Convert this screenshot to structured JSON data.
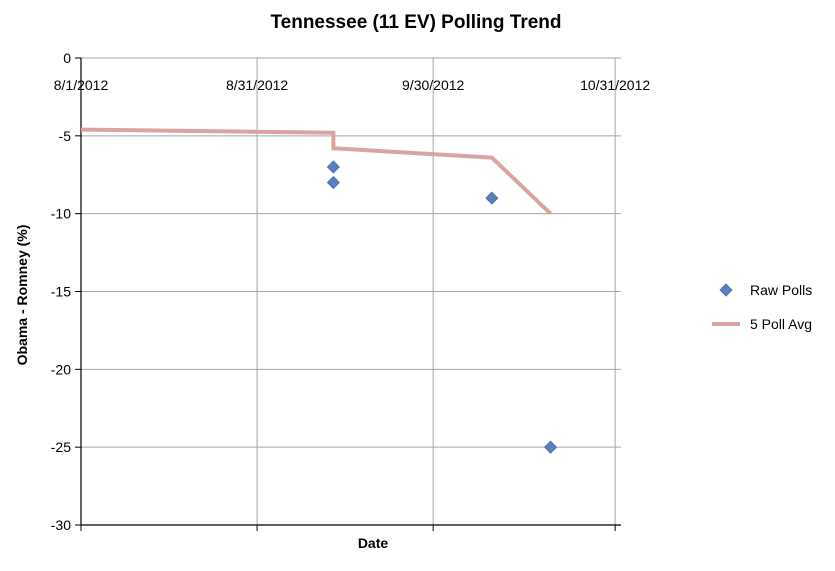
{
  "chart_data": {
    "type": "scatter",
    "title": "Tennessee (11 EV) Polling Trend",
    "xlabel": "Date",
    "ylabel": "Obama - Romney (%)",
    "x_type": "date",
    "xlim": [
      "2012-08-01",
      "2012-11-01"
    ],
    "ylim": [
      -30,
      0
    ],
    "x_ticks": [
      {
        "date": "2012-08-01",
        "label": "8/1/2012"
      },
      {
        "date": "2012-08-31",
        "label": "8/31/2012"
      },
      {
        "date": "2012-09-30",
        "label": "9/30/2012"
      },
      {
        "date": "2012-10-31",
        "label": "10/31/2012"
      }
    ],
    "y_ticks": [
      0,
      -5,
      -10,
      -15,
      -20,
      -25,
      -30
    ],
    "grid": true,
    "legend_position": "right",
    "series": [
      {
        "name": "Raw Polls",
        "kind": "scatter",
        "marker": "diamond",
        "color": "#5b7fbe",
        "points": [
          {
            "x": "2012-09-13",
            "y": -7
          },
          {
            "x": "2012-09-13",
            "y": -8
          },
          {
            "x": "2012-10-10",
            "y": -9
          },
          {
            "x": "2012-10-20",
            "y": -25
          }
        ]
      },
      {
        "name": "5 Poll Avg",
        "kind": "line",
        "color": "#dba3a1",
        "points": [
          {
            "x": "2012-08-01",
            "y": -4.6
          },
          {
            "x": "2012-09-13",
            "y": -4.8
          },
          {
            "x": "2012-09-13",
            "y": -5.8
          },
          {
            "x": "2012-10-10",
            "y": -6.4
          },
          {
            "x": "2012-10-20",
            "y": -10
          }
        ]
      }
    ]
  }
}
